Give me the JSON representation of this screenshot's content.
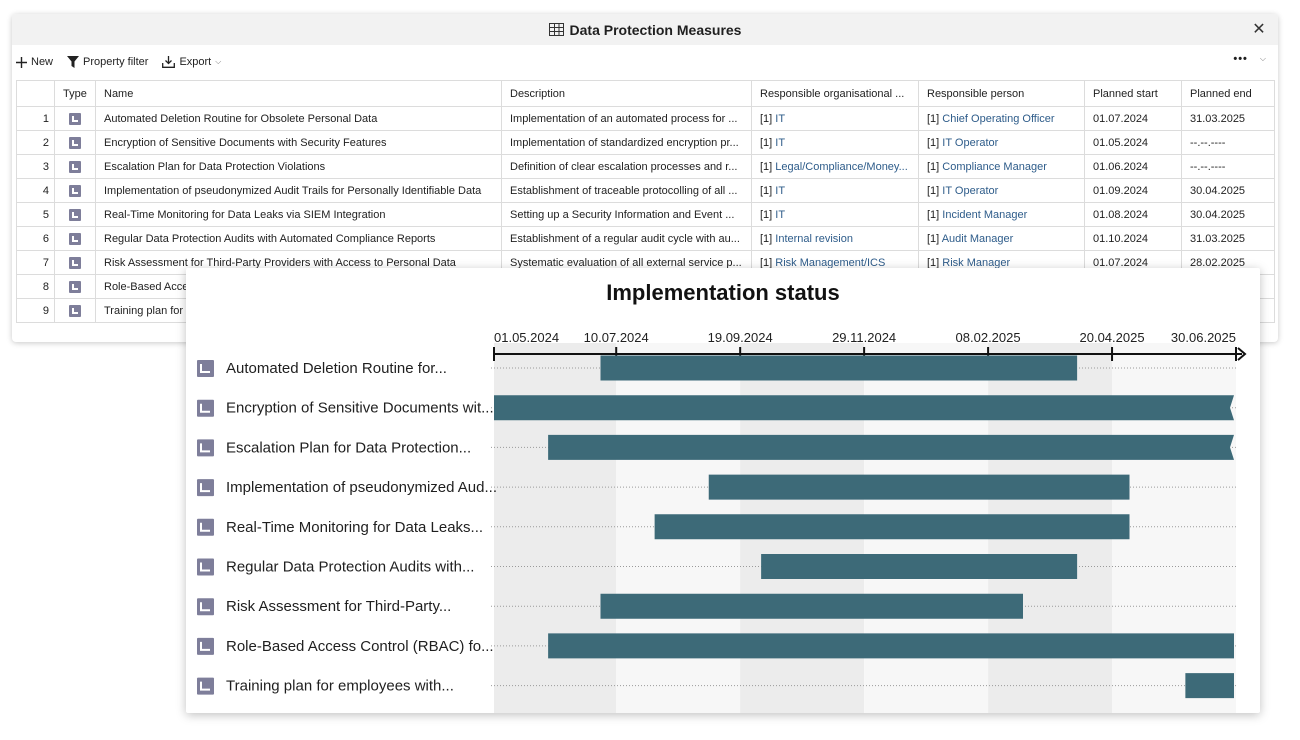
{
  "window": {
    "title": "Data Protection Measures",
    "close_symbol": "✕"
  },
  "toolbar": {
    "new_label": "New",
    "filter_label": "Property filter",
    "export_label": "Export",
    "more_symbol": "•••"
  },
  "table": {
    "headers": [
      "",
      "Type",
      "Name",
      "Description",
      "Responsible organisational ...",
      "Responsible person",
      "Planned start",
      "Planned end"
    ],
    "rows": [
      {
        "n": "1",
        "name": "Automated Deletion Routine for Obsolete Personal Data",
        "desc": "Implementation of an automated process for ...",
        "org_pre": "[1] ",
        "org": "IT",
        "person_pre": "[1] ",
        "person": "Chief Operating Officer",
        "start": "01.07.2024",
        "end": "31.03.2025"
      },
      {
        "n": "2",
        "name": "Encryption of Sensitive Documents with Security Features",
        "desc": "Implementation of standardized encryption pr...",
        "org_pre": "[1] ",
        "org": "IT",
        "person_pre": "[1] ",
        "person": "IT Operator",
        "start": "01.05.2024",
        "end": "--.--.----"
      },
      {
        "n": "3",
        "name": "Escalation Plan for Data Protection Violations",
        "desc": "Definition of clear escalation processes and r...",
        "org_pre": "[1] ",
        "org": "Legal/Compliance/Money...",
        "person_pre": "[1] ",
        "person": "Compliance Manager",
        "start": "01.06.2024",
        "end": "--.--.----"
      },
      {
        "n": "4",
        "name": "Implementation of pseudonymized Audit Trails for Personally Identifiable Data",
        "desc": "Establishment of traceable protocolling of all ...",
        "org_pre": "[1] ",
        "org": "IT",
        "person_pre": "[1] ",
        "person": "IT Operator",
        "start": "01.09.2024",
        "end": "30.04.2025"
      },
      {
        "n": "5",
        "name": "Real-Time Monitoring for Data Leaks via SIEM Integration",
        "desc": "Setting up a Security Information and Event ...",
        "org_pre": "[1] ",
        "org": "IT",
        "person_pre": "[1] ",
        "person": "Incident Manager",
        "start": "01.08.2024",
        "end": "30.04.2025"
      },
      {
        "n": "6",
        "name": "Regular Data Protection Audits with Automated Compliance Reports",
        "desc": "Establishment of a regular audit cycle with au...",
        "org_pre": "[1] ",
        "org": "Internal revision",
        "person_pre": "[1] ",
        "person": "Audit Manager",
        "start": "01.10.2024",
        "end": "31.03.2025"
      },
      {
        "n": "7",
        "name": "Risk Assessment for Third-Party Providers with Access to Personal Data",
        "desc": "Systematic evaluation of all external service p...",
        "org_pre": "[1] ",
        "org": "Risk Management/ICS",
        "person_pre": "[1] ",
        "person": "Risk Manager",
        "start": "01.07.2024",
        "end": "28.02.2025"
      },
      {
        "n": "8",
        "name": "Role-Based Access Control (RBAC) for Personal Data",
        "desc": "",
        "org_pre": "",
        "org": "",
        "person_pre": "",
        "person": "",
        "start": "",
        "end": ""
      },
      {
        "n": "9",
        "name": "Training plan for employees with Access to Personal Data",
        "desc": "",
        "org_pre": "",
        "org": "",
        "person_pre": "",
        "person": "",
        "start": "",
        "end": ""
      }
    ]
  },
  "chart_data": {
    "type": "gantt",
    "title": "Implementation status",
    "x_ticks": [
      "01.05.2024",
      "10.07.2024",
      "19.09.2024",
      "29.11.2024",
      "08.02.2025",
      "20.04.2025",
      "30.06.2025"
    ],
    "x_range": [
      "2024-05-01",
      "2025-06-30"
    ],
    "bar_color": "#3d6a78",
    "tasks": [
      {
        "label": "Automated Deletion Routine for...",
        "start": "2024-07-01",
        "end": "2025-03-31",
        "open_end": false
      },
      {
        "label": "Encryption of Sensitive Documents wit...",
        "start": "2024-05-01",
        "end": "2025-06-30",
        "open_end": true
      },
      {
        "label": "Escalation Plan for Data Protection...",
        "start": "2024-06-01",
        "end": "2025-06-30",
        "open_end": true
      },
      {
        "label": "Implementation of pseudonymized Aud...",
        "start": "2024-09-01",
        "end": "2025-04-30",
        "open_end": false
      },
      {
        "label": "Real-Time Monitoring for Data Leaks...",
        "start": "2024-08-01",
        "end": "2025-04-30",
        "open_end": false
      },
      {
        "label": "Regular Data Protection Audits with...",
        "start": "2024-10-01",
        "end": "2025-03-31",
        "open_end": false
      },
      {
        "label": "Risk Assessment for Third-Party...",
        "start": "2024-07-01",
        "end": "2025-02-28",
        "open_end": false
      },
      {
        "label": "Role-Based Access Control (RBAC) fo...",
        "start": "2024-06-01",
        "end": "2025-06-30",
        "open_end": false
      },
      {
        "label": "Training plan for employees with...",
        "start": "2025-06-01",
        "end": "2025-06-30",
        "open_end": false
      }
    ]
  }
}
